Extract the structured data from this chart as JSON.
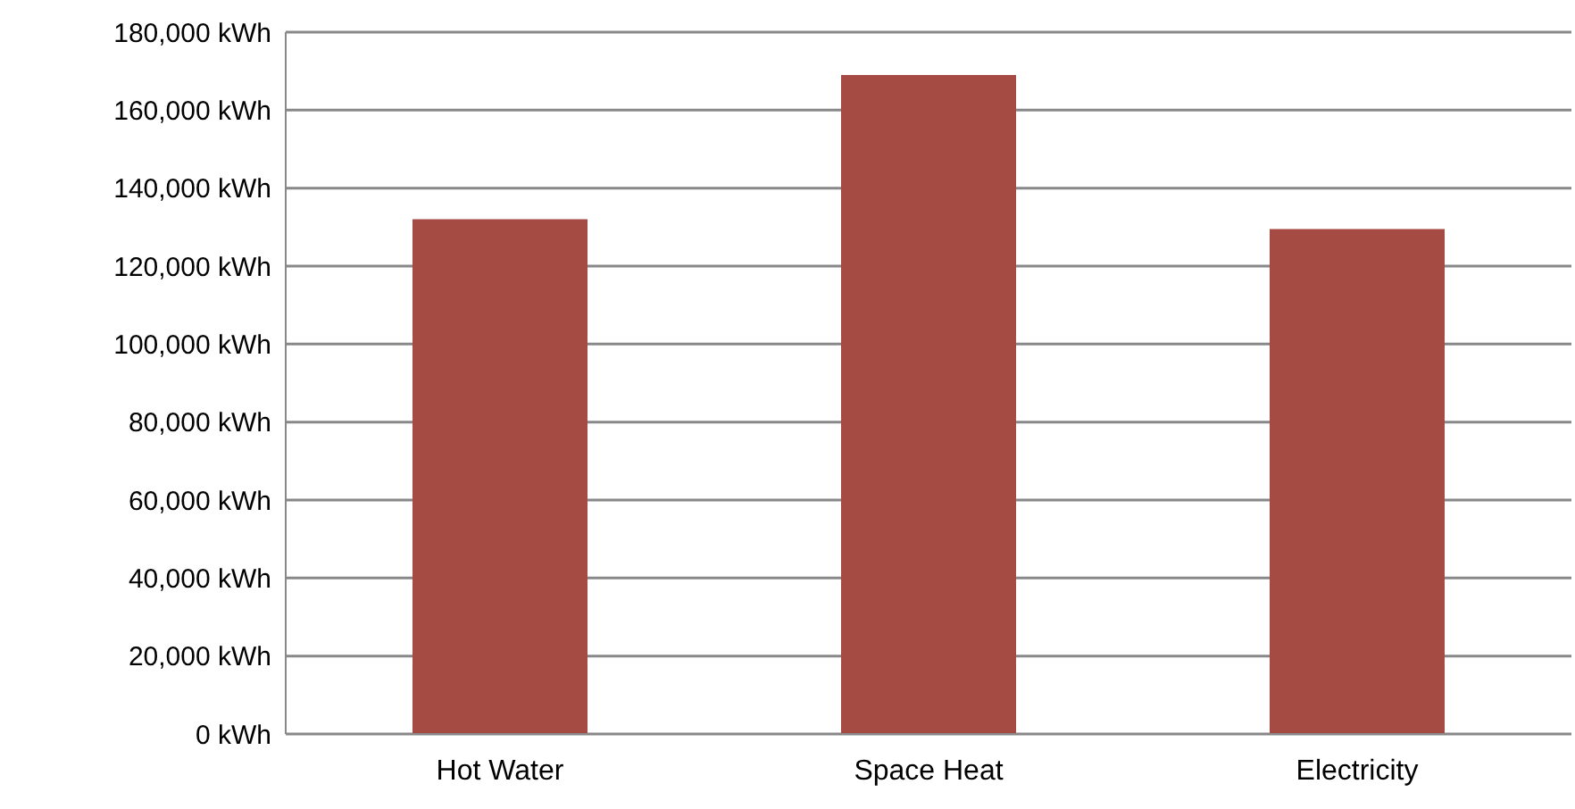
{
  "chart_data": {
    "type": "bar",
    "categories": [
      "Hot Water",
      "Space Heat",
      "Electricity"
    ],
    "values": [
      132000,
      169000,
      129500
    ],
    "color": "#a54b44",
    "ylim": [
      0,
      180000
    ],
    "yticks": [
      {
        "value": 0,
        "label": "0 kWh"
      },
      {
        "value": 20000,
        "label": "20,000 kWh"
      },
      {
        "value": 40000,
        "label": "40,000 kWh"
      },
      {
        "value": 60000,
        "label": "60,000 kWh"
      },
      {
        "value": 80000,
        "label": "80,000 kWh"
      },
      {
        "value": 100000,
        "label": "100,000 kWh"
      },
      {
        "value": 120000,
        "label": "120,000 kWh"
      },
      {
        "value": 140000,
        "label": "140,000 kWh"
      },
      {
        "value": 160000,
        "label": "160,000 kWh"
      },
      {
        "value": 180000,
        "label": "180,000 kWh"
      }
    ],
    "grid": "y"
  }
}
